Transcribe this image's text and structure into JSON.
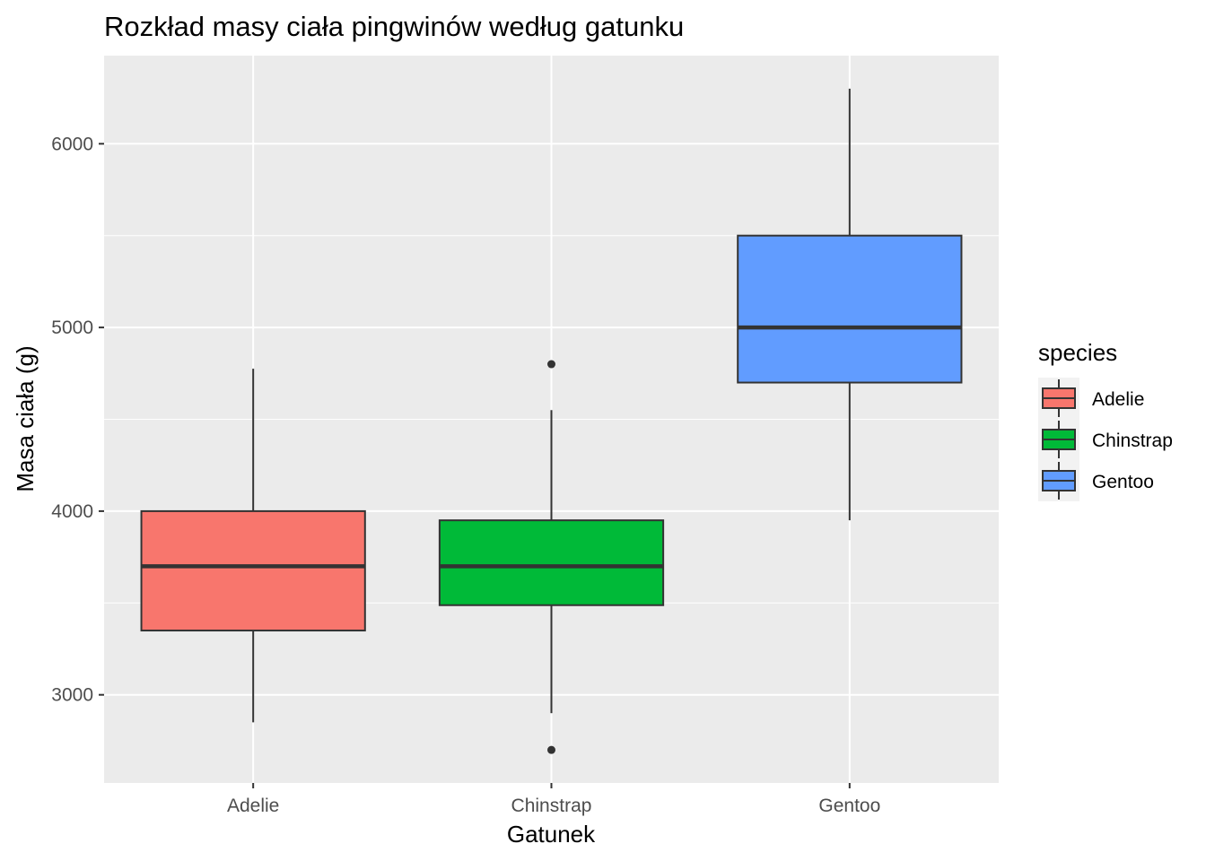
{
  "chart_data": {
    "type": "boxplot",
    "title": "Rozkład masy ciała pingwinów według gatunku",
    "xlabel": "Gatunek",
    "ylabel": "Masa ciała (g)",
    "ylim": [
      2520,
      6480
    ],
    "y_ticks": [
      3000,
      4000,
      5000,
      6000
    ],
    "grid": true,
    "legend": {
      "title": "species",
      "position": "right"
    },
    "categories": [
      "Adelie",
      "Chinstrap",
      "Gentoo"
    ],
    "boxes": [
      {
        "category": "Adelie",
        "color": "#F8766D",
        "min": 2850,
        "q1": 3350,
        "median": 3700,
        "q3": 4000,
        "max": 4775,
        "outliers": []
      },
      {
        "category": "Chinstrap",
        "color": "#00BA38",
        "min": 2900,
        "q1": 3488,
        "median": 3700,
        "q3": 3950,
        "max": 4550,
        "outliers": [
          4800,
          2700
        ]
      },
      {
        "category": "Gentoo",
        "color": "#619CFF",
        "min": 3950,
        "q1": 4700,
        "median": 5000,
        "q3": 5500,
        "max": 6300,
        "outliers": []
      }
    ]
  }
}
